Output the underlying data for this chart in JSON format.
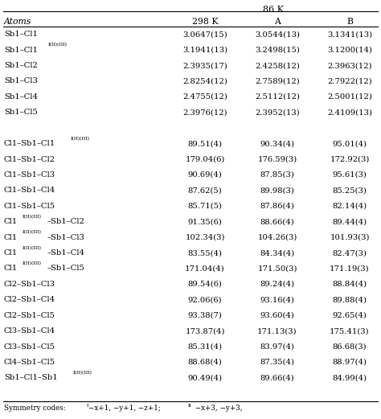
{
  "title": "86 K",
  "col_headers": [
    "Atoms",
    "298 K",
    "A",
    "B"
  ],
  "rows": [
    [
      [
        "Sb1–Cl1"
      ],
      "3.0647(15)",
      "3.0544(13)",
      "3.1341(13)"
    ],
    [
      [
        "Sb1–Cl1",
        "I(II)(III)",
        ""
      ],
      "3.1941(13)",
      "3.2498(15)",
      "3.1200(14)"
    ],
    [
      [
        "Sb1–Cl2"
      ],
      "2.3935(17)",
      "2.4258(12)",
      "2.3963(12)"
    ],
    [
      [
        "Sb1–Cl3"
      ],
      "2.8254(12)",
      "2.7589(12)",
      "2.7922(12)"
    ],
    [
      [
        "Sb1–Cl4"
      ],
      "2.4755(12)",
      "2.5112(12)",
      "2.5001(12)"
    ],
    [
      [
        "Sb1–Cl5"
      ],
      "2.3976(12)",
      "2.3952(13)",
      "2.4109(13)"
    ],
    [
      null,
      "",
      "",
      ""
    ],
    [
      [
        "Cl1–Sb1–Cl1",
        "I(II)(III)",
        ""
      ],
      "89.51(4)",
      "90.34(4)",
      "95.01(4)"
    ],
    [
      [
        "Cl1–Sb1–Cl2"
      ],
      "179.04(6)",
      "176.59(3)",
      "172.92(3)"
    ],
    [
      [
        "Cl1–Sb1–Cl3"
      ],
      "90.69(4)",
      "87.85(3)",
      "95.61(3)"
    ],
    [
      [
        "Cl1–Sb1–Cl4"
      ],
      "87.62(5)",
      "89.98(3)",
      "85.25(3)"
    ],
    [
      [
        "Cl1–Sb1–Cl5"
      ],
      "85.71(5)",
      "87.86(4)",
      "82.14(4)"
    ],
    [
      [
        "Cl1",
        "I(II)(III)",
        "–Sb1–Cl2"
      ],
      "91.35(6)",
      "88.66(4)",
      "89.44(4)"
    ],
    [
      [
        "Cl1",
        "I(II)(III)",
        "–Sb1–Cl3"
      ],
      "102.34(3)",
      "104.26(3)",
      "101.93(3)"
    ],
    [
      [
        "Cl1",
        "I(II)(III)",
        "–Sb1–Cl4"
      ],
      "83.55(4)",
      "84.34(4)",
      "82.47(3)"
    ],
    [
      [
        "Cl1",
        "I(II)(III)",
        "–Sb1–Cl5"
      ],
      "171.04(4)",
      "171.50(3)",
      "171.19(3)"
    ],
    [
      [
        "Cl2–Sb1–Cl3"
      ],
      "89.54(6)",
      "89.24(4)",
      "88.84(4)"
    ],
    [
      [
        "Cl2–Sb1–Cl4"
      ],
      "92.06(6)",
      "93.16(4)",
      "89.88(4)"
    ],
    [
      [
        "Cl2–Sb1–Cl5"
      ],
      "93.38(7)",
      "93.60(4)",
      "92.65(4)"
    ],
    [
      [
        "Cl3–Sb1–Cl4"
      ],
      "173.87(4)",
      "171.13(3)",
      "175.41(3)"
    ],
    [
      [
        "Cl3–Sb1–Cl5"
      ],
      "85.31(4)",
      "83.97(4)",
      "86.68(3)"
    ],
    [
      [
        "Cl4–Sb1–Cl5"
      ],
      "88.68(4)",
      "87.35(4)",
      "88.97(4)"
    ],
    [
      [
        "Sb1–Cl1–Sb1",
        "I(II)(III)",
        ""
      ],
      "90.49(4)",
      "89.66(4)",
      "84.99(4)"
    ]
  ],
  "bg_color": "#ffffff",
  "text_color": "#000000",
  "line_color": "#000000",
  "font_size": 7.2,
  "header_font_size": 7.8,
  "title_font_size": 8.0
}
